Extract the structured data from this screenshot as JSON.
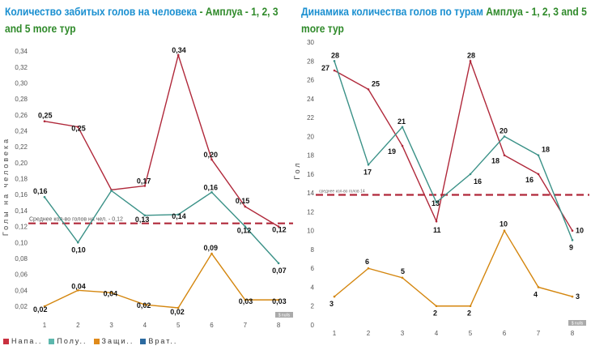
{
  "titles": [
    {
      "main": "Количество забитых голов на человека",
      "suffix": " - Амплуа - 1, 2, 3 and 5 more тур"
    },
    {
      "main": "Динамика количества голов по турам",
      "suffix": " Амплуа - 1, 2, 3 and 5 more тур"
    }
  ],
  "colors": {
    "attack": "#b0283a",
    "mid": "#3a9187",
    "def": "#d4860e",
    "gk": "#2c6aa0",
    "avg": "#b0283a"
  },
  "legend": [
    {
      "label": "Напа..",
      "color": "#c9303f"
    },
    {
      "label": "Полу..",
      "color": "#5cb7ad"
    },
    {
      "label": "Защи..",
      "color": "#e08a1a"
    },
    {
      "label": "Врат..",
      "color": "#2c6aa0"
    }
  ],
  "nulls_badge": "$ nulls",
  "chart_data": [
    {
      "type": "line",
      "title": "Количество забитых голов на человека - Амплуа - 1, 2, 3 and 5 more тур",
      "xlabel": "",
      "ylabel": "Голы на человека",
      "x": [
        1,
        2,
        3,
        4,
        5,
        6,
        7,
        8
      ],
      "ylim": [
        0,
        0.35
      ],
      "yticks": [
        "0,02",
        "0,04",
        "0,06",
        "0,08",
        "0,10",
        "0,12",
        "0,14",
        "0,16",
        "0,18",
        "0,20",
        "0,22",
        "0,24",
        "0,26",
        "0,28",
        "0,30",
        "0,32",
        "0,34"
      ],
      "reference_line": {
        "value": 0.124,
        "label": "Среднее кол-во голов на чел. - 0,12"
      },
      "series": [
        {
          "name": "Напа..",
          "key": "attack",
          "values": [
            0.252,
            0.245,
            0.166,
            0.171,
            0.335,
            0.204,
            0.145,
            0.12
          ],
          "labels": [
            "0,25",
            "0,25",
            "",
            "0,17",
            "0,34",
            "0,20",
            "0,15",
            "0,12"
          ]
        },
        {
          "name": "Полу..",
          "key": "mid",
          "values": [
            0.157,
            0.1,
            0.165,
            0.134,
            0.135,
            0.163,
            0.12,
            0.074
          ],
          "labels": [
            "0,16",
            "0,10",
            "",
            "0,13",
            "0,14",
            "0,16",
            "0,12",
            "0,07"
          ]
        },
        {
          "name": "Защи..",
          "key": "def",
          "values": [
            0.02,
            0.04,
            0.037,
            0.022,
            0.018,
            0.086,
            0.028,
            0.028
          ],
          "labels": [
            "0,02",
            "0,04",
            "0,04",
            "0,02",
            "0,02",
            "0,09",
            "0,03",
            "0,03"
          ]
        }
      ]
    },
    {
      "type": "line",
      "title": "Динамика количества голов по турам Амплуа - 1, 2, 3 and 5 more тур",
      "xlabel": "",
      "ylabel": "Гол",
      "x": [
        1,
        2,
        3,
        4,
        5,
        6,
        7,
        8
      ],
      "ylim": [
        0,
        30
      ],
      "yticks": [
        "0",
        "2",
        "4",
        "6",
        "8",
        "10",
        "12",
        "14",
        "16",
        "18",
        "20",
        "22",
        "24",
        "26",
        "28",
        "30"
      ],
      "reference_line": {
        "value": 13.8,
        "label": "среднее кол-во голов 14"
      },
      "series": [
        {
          "name": "Напа..",
          "key": "attack",
          "values": [
            27,
            25,
            19,
            11,
            28,
            18,
            16,
            10
          ],
          "labels": [
            "27",
            "25",
            "19",
            "11",
            "28",
            "18",
            "16",
            "10"
          ]
        },
        {
          "name": "Полу..",
          "key": "mid",
          "values": [
            28,
            17,
            21,
            13,
            16,
            20,
            18,
            9
          ],
          "labels": [
            "28",
            "17",
            "21",
            "13",
            "16",
            "20",
            "18",
            "9"
          ]
        },
        {
          "name": "Защи..",
          "key": "def",
          "values": [
            3,
            6,
            5,
            2,
            2,
            10,
            4,
            3
          ],
          "labels": [
            "3",
            "6",
            "5",
            "2",
            "2",
            "10",
            "4",
            "3"
          ]
        }
      ]
    }
  ]
}
